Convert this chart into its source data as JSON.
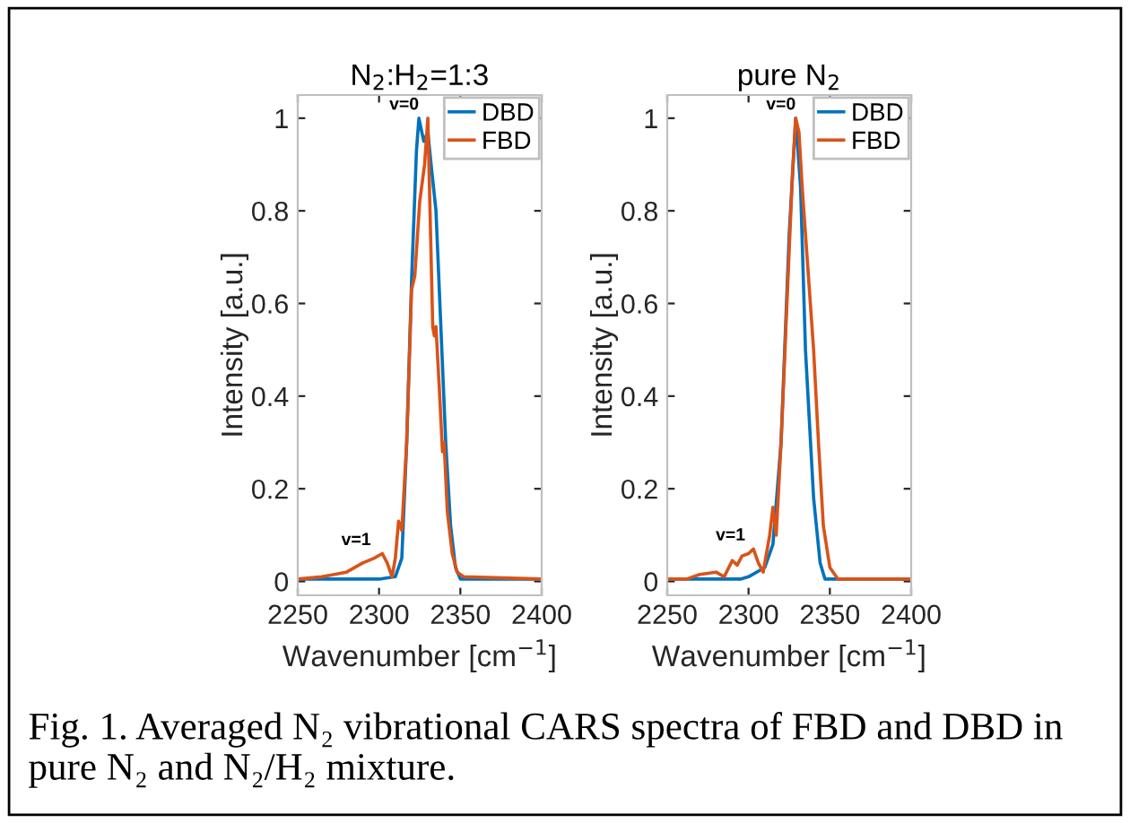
{
  "chart_data": [
    {
      "type": "line",
      "title": "N$_{2}$:H$_{2}$=1:3",
      "xlabel": "Wavenumber [cm$^{−1}$]",
      "ylabel": "Intensity [a.u.]",
      "xlim": [
        2250,
        2400
      ],
      "xticks": [
        2250,
        2300,
        2350,
        2400
      ],
      "ylim": [
        -0.03,
        1.05
      ],
      "yticks": [
        0,
        0.2,
        0.4,
        0.6,
        0.8,
        1
      ],
      "grid": false,
      "legend": "top right",
      "series": [
        {
          "name": "DBD",
          "color": "#0072bd",
          "x": [
            2250,
            2300,
            2310,
            2314,
            2317,
            2320,
            2323,
            2324.5,
            2327.5,
            2330,
            2332,
            2335,
            2338,
            2341,
            2344,
            2347,
            2350,
            2400
          ],
          "values": [
            0.005,
            0.005,
            0.01,
            0.05,
            0.3,
            0.65,
            0.93,
            1.0,
            0.95,
            0.97,
            0.9,
            0.8,
            0.55,
            0.3,
            0.12,
            0.03,
            0.005,
            0.005
          ]
        },
        {
          "name": "FBD",
          "color": "#d95319",
          "x": [
            2250,
            2265,
            2280,
            2290,
            2297,
            2302,
            2305,
            2308,
            2310,
            2312,
            2314,
            2317,
            2320,
            2322,
            2325,
            2328,
            2330,
            2332,
            2333,
            2334,
            2335,
            2337,
            2339,
            2340,
            2342,
            2345,
            2348,
            2352,
            2400
          ],
          "values": [
            0.005,
            0.01,
            0.02,
            0.04,
            0.05,
            0.06,
            0.04,
            0.01,
            0.05,
            0.13,
            0.11,
            0.3,
            0.63,
            0.66,
            0.82,
            0.9,
            1.0,
            0.7,
            0.55,
            0.53,
            0.55,
            0.42,
            0.28,
            0.3,
            0.15,
            0.06,
            0.02,
            0.01,
            0.005
          ]
        }
      ],
      "annotations": [
        {
          "text": "v=0",
          "x": 2324.5,
          "y": 1.0
        },
        {
          "text": "v=1",
          "x": 2295,
          "y": 0.06
        },
        "Fig. 1. Averaged N₂ vibrational CARS spectra of FBD and DBD in pure N₂ and N₂/H₂ mixture."
      ]
    },
    {
      "type": "line",
      "title": "pure N$_{2}$",
      "xlabel": "Wavenumber [cm$^{−1}$]",
      "ylabel": "Intensity [a.u.]",
      "xlim": [
        2250,
        2400
      ],
      "xticks": [
        2250,
        2300,
        2350,
        2400
      ],
      "ylim": [
        -0.03,
        1.05
      ],
      "yticks": [
        0,
        0.2,
        0.4,
        0.6,
        0.8,
        1
      ],
      "grid": false,
      "legend": "top right",
      "series": [
        {
          "name": "DBD",
          "color": "#0072bd",
          "x": [
            2250,
            2295,
            2300,
            2310,
            2315,
            2320,
            2325,
            2329,
            2332,
            2335,
            2340,
            2344,
            2347,
            2400
          ],
          "values": [
            0.005,
            0.005,
            0.01,
            0.03,
            0.08,
            0.3,
            0.75,
            1.0,
            0.85,
            0.5,
            0.18,
            0.04,
            0.005,
            0.005
          ]
        },
        {
          "name": "FBD",
          "color": "#d95319",
          "x": [
            2250,
            2262,
            2270,
            2280,
            2285,
            2290,
            2293,
            2296,
            2300,
            2303,
            2306,
            2309,
            2313,
            2315,
            2317,
            2320,
            2323,
            2327,
            2329,
            2331,
            2333,
            2336,
            2340,
            2343,
            2346,
            2350,
            2355,
            2400
          ],
          "values": [
            0.005,
            0.005,
            0.015,
            0.02,
            0.01,
            0.045,
            0.035,
            0.055,
            0.06,
            0.07,
            0.04,
            0.02,
            0.1,
            0.16,
            0.1,
            0.3,
            0.55,
            0.88,
            1.0,
            0.97,
            0.85,
            0.7,
            0.5,
            0.3,
            0.12,
            0.03,
            0.005,
            0.005
          ]
        }
      ],
      "annotations": [
        {
          "text": "v=0",
          "x": 2329,
          "y": 1.0
        },
        {
          "text": "v=1",
          "x": 2298,
          "y": 0.07
        }
      ]
    }
  ]
}
